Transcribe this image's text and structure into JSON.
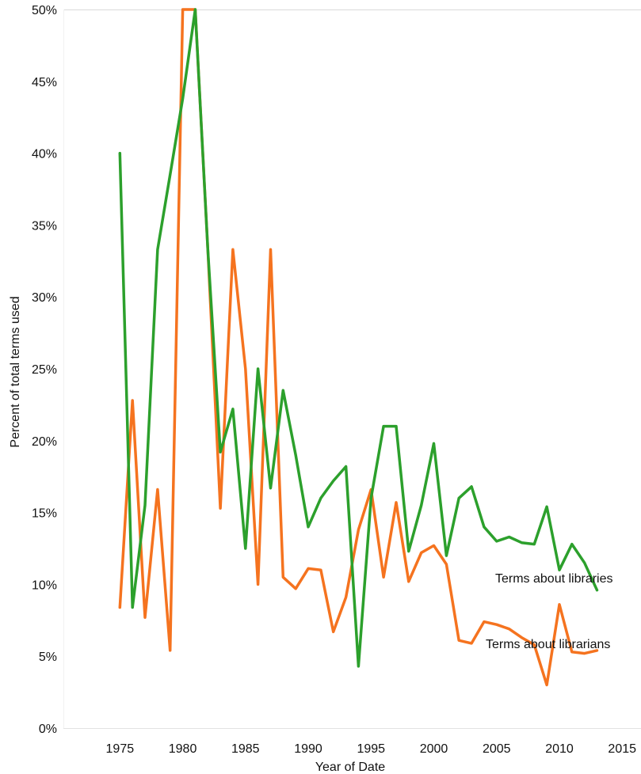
{
  "chart_data": {
    "type": "line",
    "title": "",
    "xlabel": "Year of Date",
    "ylabel": "Percent of total terms used",
    "xlim": [
      1970.5,
      2016.5
    ],
    "ylim": [
      0,
      50
    ],
    "x_ticks": [
      1975,
      1980,
      1985,
      1990,
      1995,
      2000,
      2005,
      2010,
      2015
    ],
    "y_ticks": [
      0,
      5,
      10,
      15,
      20,
      25,
      30,
      35,
      40,
      45,
      50
    ],
    "y_tick_labels": [
      "0%",
      "5%",
      "10%",
      "15%",
      "20%",
      "25%",
      "30%",
      "35%",
      "40%",
      "45%",
      "50%"
    ],
    "grid": false,
    "legend": "inline labels at line ends",
    "series": [
      {
        "name": "Terms about libraries",
        "color": "#2ca02c",
        "x": [
          1975,
          1976,
          1977,
          1978,
          1979,
          1980,
          1981,
          1982,
          1983,
          1984,
          1985,
          1986,
          1987,
          1988,
          1989,
          1990,
          1991,
          1992,
          1993,
          1994,
          1995,
          1996,
          1997,
          1998,
          1999,
          2000,
          2001,
          2002,
          2003,
          2004,
          2005,
          2006,
          2007,
          2008,
          2009,
          2010,
          2011,
          2012,
          2013
        ],
        "values": [
          40.0,
          8.4,
          15.5,
          33.3,
          38.5,
          43.8,
          50.0,
          33.3,
          19.2,
          22.2,
          12.5,
          25.0,
          16.7,
          23.5,
          19.0,
          14.0,
          16.0,
          17.2,
          18.2,
          4.3,
          16.0,
          21.0,
          21.0,
          12.3,
          15.5,
          19.8,
          12.0,
          16.0,
          16.8,
          14.0,
          13.0,
          13.3,
          12.9,
          12.8,
          15.4,
          11.0,
          12.8,
          11.5,
          9.6
        ]
      },
      {
        "name": "Terms about librarians",
        "color": "#f5731f",
        "x": [
          1975,
          1976,
          1977,
          1978,
          1979,
          1980,
          1981,
          1982,
          1983,
          1984,
          1985,
          1986,
          1987,
          1988,
          1989,
          1990,
          1991,
          1992,
          1993,
          1994,
          1995,
          1996,
          1997,
          1998,
          1999,
          2000,
          2001,
          2002,
          2003,
          2004,
          2005,
          2006,
          2007,
          2008,
          2009,
          2010,
          2011,
          2012,
          2013
        ],
        "values": [
          8.4,
          22.8,
          7.7,
          16.6,
          5.4,
          50.0,
          50.0,
          33.3,
          15.3,
          33.3,
          25.0,
          10.0,
          33.3,
          10.5,
          9.7,
          11.1,
          11.0,
          6.7,
          9.1,
          13.8,
          16.6,
          10.5,
          15.7,
          10.2,
          12.2,
          12.7,
          11.4,
          6.1,
          5.9,
          7.4,
          7.2,
          6.9,
          6.3,
          5.8,
          3.0,
          8.6,
          5.3,
          5.2,
          5.4
        ]
      }
    ],
    "series_labels": [
      "Terms about libraries",
      "Terms about librarians"
    ]
  }
}
